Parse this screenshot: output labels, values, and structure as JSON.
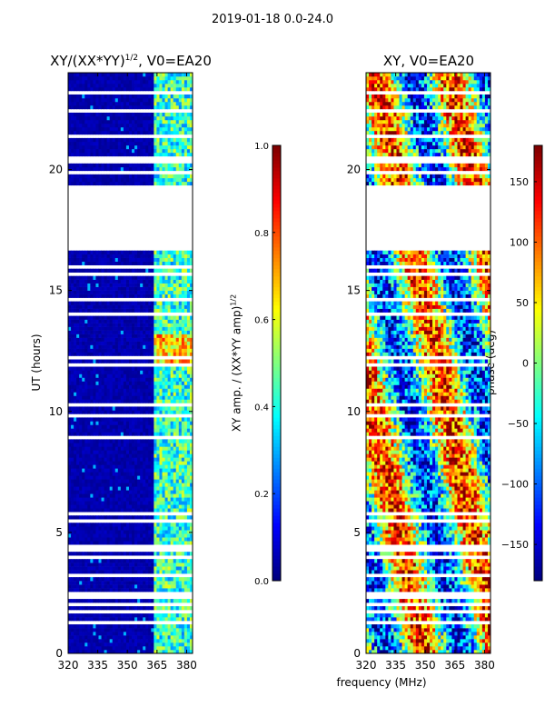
{
  "chart_data": [
    {
      "type": "heatmap",
      "suptitle": "2019-01-18 0.0-24.0",
      "title": "XY/(XX*YY)^1/2, V0=EA20",
      "title_main": "XY/(XX*YY)",
      "title_sup": "1/2",
      "title_tail": ", V0=EA20",
      "xlabel": "frequency (MHz)",
      "ylabel": "UT (hours)",
      "xlim": [
        320,
        383
      ],
      "ylim": [
        0,
        24
      ],
      "xticks": [
        320,
        335,
        350,
        365,
        380
      ],
      "yticks": [
        0,
        5,
        10,
        15,
        20
      ],
      "colormap": "jet",
      "data_gap_hours": [
        19.3,
        16.7
      ],
      "colorbar": {
        "label": "XY amp. / (XX*YY amp)^1/2",
        "label_main": "XY amp. / (XX*YY amp)",
        "label_sup": "1/2",
        "range": [
          0.0,
          1.0
        ],
        "ticks": [
          "0.0",
          "0.2",
          "0.4",
          "0.6",
          "0.8",
          "1.0"
        ]
      }
    },
    {
      "type": "heatmap",
      "title": "XY, V0=EA20",
      "xlabel": "frequency (MHz)",
      "ylabel": "",
      "xlim": [
        320,
        383
      ],
      "ylim": [
        0,
        24
      ],
      "xticks": [
        320,
        335,
        350,
        365,
        380
      ],
      "yticks": [
        0,
        5,
        10,
        15,
        20
      ],
      "colormap": "jet",
      "data_gap_hours": [
        19.3,
        16.7
      ],
      "colorbar": {
        "label": "phase (deg)",
        "range": [
          -180,
          180
        ],
        "ticks": [
          "−150",
          "−100",
          "−50",
          "0",
          "50",
          "100",
          "150"
        ]
      }
    }
  ]
}
